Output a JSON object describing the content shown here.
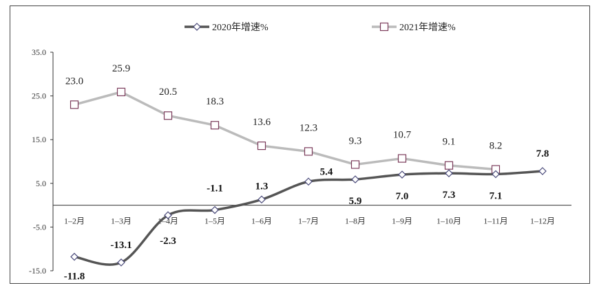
{
  "chart_data": {
    "type": "line",
    "categories": [
      "1–2月",
      "1–3月",
      "1–4月",
      "1–5月",
      "1–6月",
      "1–7月",
      "1–8月",
      "1–9月",
      "1–10月",
      "1–11月",
      "1–12月"
    ],
    "series": [
      {
        "name": "2020年增速%",
        "color": "#555555",
        "marker": "diamond",
        "values": [
          -11.8,
          -13.1,
          -2.3,
          -1.1,
          1.3,
          5.4,
          5.9,
          7.0,
          7.3,
          7.1,
          7.8
        ]
      },
      {
        "name": "2021年增速%",
        "color": "#bbbbbb",
        "marker": "square",
        "values": [
          23.0,
          25.9,
          20.5,
          18.3,
          13.6,
          12.3,
          9.3,
          10.7,
          9.1,
          8.2,
          null
        ]
      }
    ],
    "yticks": [
      "35.0",
      "25.0",
      "15.0",
      "5.0",
      "-5.0",
      "-15.0"
    ],
    "ylim": [
      -15,
      35
    ],
    "legend": "top-center",
    "grid": false
  }
}
